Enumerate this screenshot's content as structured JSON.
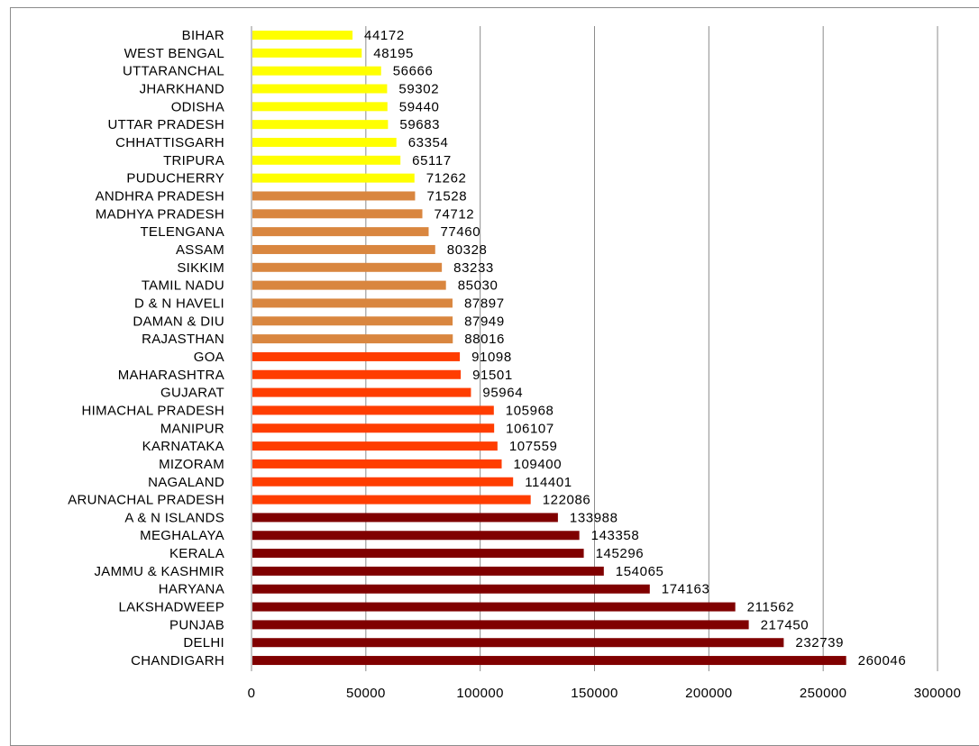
{
  "chart_data": {
    "type": "bar",
    "orientation": "horizontal",
    "categories": [
      "BIHAR",
      "WEST BENGAL",
      "UTTARANCHAL",
      "JHARKHAND",
      "ODISHA",
      "UTTAR PRADESH",
      "CHHATTISGARH",
      "TRIPURA",
      "PUDUCHERRY",
      "ANDHRA PRADESH",
      "MADHYA PRADESH",
      "TELENGANA",
      "ASSAM",
      "SIKKIM",
      "TAMIL NADU",
      "D & N HAVELI",
      "DAMAN & DIU",
      "RAJASTHAN",
      "GOA",
      "MAHARASHTRA",
      "GUJARAT",
      "HIMACHAL PRADESH",
      "MANIPUR",
      "KARNATAKA",
      "MIZORAM",
      "NAGALAND",
      "ARUNACHAL PRADESH",
      "A & N ISLANDS",
      "MEGHALAYA",
      "KERALA",
      "JAMMU & KASHMIR",
      "HARYANA",
      "LAKSHADWEEP",
      "PUNJAB",
      "DELHI",
      "CHANDIGARH"
    ],
    "values": [
      44172,
      48195,
      56666,
      59302,
      59440,
      59683,
      63354,
      65117,
      71262,
      71528,
      74712,
      77460,
      80328,
      83233,
      85030,
      87897,
      87949,
      88016,
      91098,
      91501,
      95964,
      105968,
      106107,
      107559,
      109400,
      114401,
      122086,
      133988,
      143358,
      145296,
      154065,
      174163,
      211562,
      217450,
      232739,
      260046
    ],
    "value_labels": [
      "44172",
      "48195",
      "56666",
      "59302",
      "59440",
      "59683",
      "63354",
      "65117",
      "71262",
      "71528",
      "74712",
      "77460",
      "80328",
      "83233",
      "85030",
      "87897",
      "87949",
      "88016",
      "91098",
      "91501",
      "95964",
      "105968",
      "106107",
      "107559",
      "109400",
      "114401",
      "122086",
      "133988",
      "143358",
      "145296",
      "154065",
      "174163",
      "211562",
      "217450",
      "232739",
      "260046"
    ],
    "bar_colors": [
      "#ffff00",
      "#ffff00",
      "#ffff00",
      "#ffff00",
      "#ffff00",
      "#ffff00",
      "#ffff00",
      "#ffff00",
      "#ffff00",
      "#d9863f",
      "#d9863f",
      "#d9863f",
      "#d9863f",
      "#d9863f",
      "#d9863f",
      "#d9863f",
      "#d9863f",
      "#d9863f",
      "#ff3d00",
      "#ff3d00",
      "#ff3d00",
      "#ff3d00",
      "#ff3d00",
      "#ff3d00",
      "#ff3d00",
      "#ff3d00",
      "#ff3d00",
      "#800000",
      "#800000",
      "#800000",
      "#800000",
      "#800000",
      "#800000",
      "#800000",
      "#800000",
      "#800000"
    ],
    "xlim": [
      0,
      300000
    ],
    "xticks": [
      "0",
      "50000",
      "100000",
      "150000",
      "200000",
      "250000",
      "300000"
    ],
    "title": "",
    "xlabel": "",
    "ylabel": "",
    "grid": "vertical gridlines",
    "legend": "none"
  }
}
